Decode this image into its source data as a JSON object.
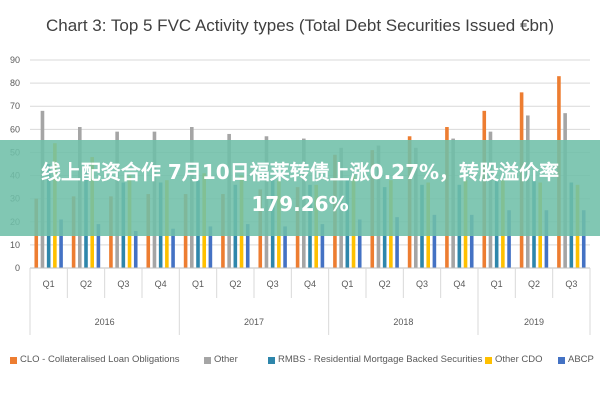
{
  "chart_data": {
    "type": "bar",
    "title": "Chart 3: Top 5 FVC Activity types (Total Debt Securities Issued €bn)",
    "categories": [
      "Q1",
      "Q2",
      "Q3",
      "Q4",
      "Q1",
      "Q2",
      "Q3",
      "Q4",
      "Q1",
      "Q2",
      "Q3",
      "Q4",
      "Q1",
      "Q2",
      "Q3"
    ],
    "groups": [
      {
        "label": "2016",
        "count": 4
      },
      {
        "label": "2017",
        "count": 4
      },
      {
        "label": "2018",
        "count": 4
      },
      {
        "label": "2019",
        "count": 3
      }
    ],
    "series": [
      {
        "name": "CLO - Collateralised Loan Obligations",
        "color": "#ED7D31",
        "values": [
          30,
          31,
          31,
          32,
          32,
          32,
          34,
          35,
          49,
          51,
          57,
          61,
          68,
          76,
          83
        ]
      },
      {
        "name": "Other",
        "color": "#A5A5A5",
        "values": [
          68,
          61,
          59,
          59,
          61,
          58,
          57,
          56,
          52,
          53,
          52,
          56,
          59,
          66,
          67
        ]
      },
      {
        "name": "RMBS - Residential Mortgage Backed Securities",
        "color": "#2E86AB",
        "values": [
          45,
          45,
          37,
          37,
          38,
          36,
          38,
          36,
          38,
          35,
          36,
          36,
          38,
          38,
          37
        ]
      },
      {
        "name": "Other CDO",
        "color": "#FFC000",
        "values": [
          54,
          48,
          40,
          38,
          41,
          40,
          38,
          36,
          40,
          38,
          37,
          38,
          38,
          37,
          36
        ]
      },
      {
        "name": "ABCP",
        "color": "#4472C4",
        "values": [
          21,
          19,
          16,
          17,
          18,
          19,
          18,
          19,
          21,
          22,
          23,
          23,
          25,
          25,
          25
        ]
      }
    ],
    "ylim": [
      0,
      90
    ],
    "yticks": [
      0,
      10,
      20,
      30,
      40,
      50,
      60,
      70,
      80,
      90
    ],
    "grid": true,
    "legend": "bottom"
  },
  "overlay": {
    "text": "线上配资合作 7月10日福莱转债上涨0.27%，转股溢价率179.26%"
  }
}
